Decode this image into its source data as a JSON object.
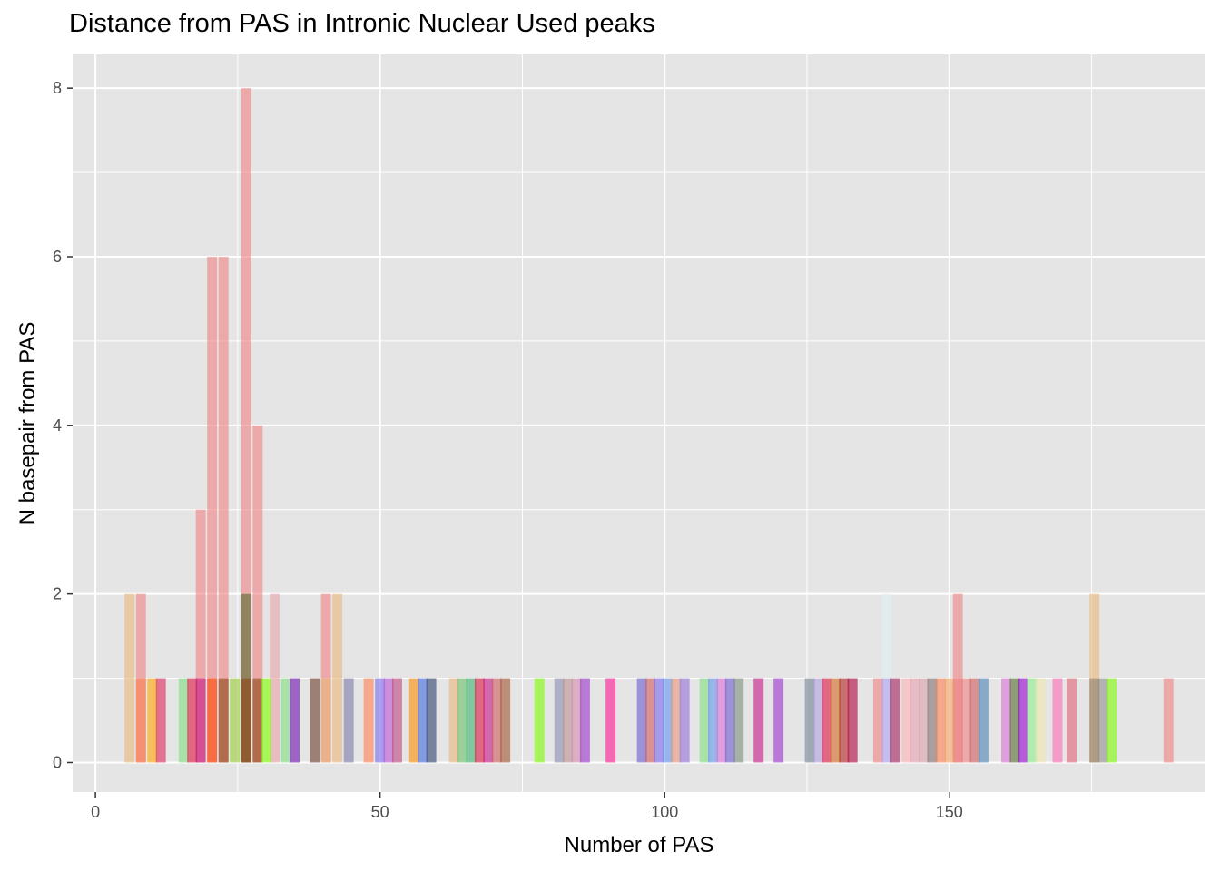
{
  "chart_data": {
    "type": "bar",
    "title": "Distance from PAS in Intronic Nuclear Used peaks",
    "xlabel": "Number of PAS",
    "ylabel": "N basepair from PAS",
    "xlim": [
      -4,
      195
    ],
    "ylim": [
      -0.35,
      8.4
    ],
    "x_ticks": [
      0,
      50,
      100,
      150
    ],
    "y_ticks": [
      0,
      2,
      4,
      6,
      8
    ],
    "grid": true,
    "background": "#e5e5e5",
    "grid_color": "#ffffff",
    "bar_width": 1.75,
    "bar_opacity": 0.6,
    "legend": "none",
    "bars": [
      {
        "x": 6,
        "height": 2,
        "color": "#e8b77a"
      },
      {
        "x": 8,
        "height": 2,
        "color": "#f08080"
      },
      {
        "x": 8,
        "height": 1,
        "color": "#ff7f50"
      },
      {
        "x": 10,
        "height": 1,
        "color": "#ffa500"
      },
      {
        "x": 11.5,
        "height": 1,
        "color": "#e0245e"
      },
      {
        "x": 15.5,
        "height": 1,
        "color": "#7ee07e"
      },
      {
        "x": 17,
        "height": 1,
        "color": "#dc143c"
      },
      {
        "x": 18.5,
        "height": 3,
        "color": "#f08080"
      },
      {
        "x": 18.5,
        "height": 1,
        "color": "#c71585"
      },
      {
        "x": 20.5,
        "height": 6,
        "color": "#f08080"
      },
      {
        "x": 20.5,
        "height": 1,
        "color": "#ff4500"
      },
      {
        "x": 22.5,
        "height": 6,
        "color": "#f08080"
      },
      {
        "x": 22.5,
        "height": 1,
        "color": "#8b4513"
      },
      {
        "x": 24.5,
        "height": 1,
        "color": "#9acd32"
      },
      {
        "x": 26.5,
        "height": 8,
        "color": "#f08080"
      },
      {
        "x": 26.5,
        "height": 2,
        "color": "#556b2f"
      },
      {
        "x": 26.5,
        "height": 1,
        "color": "#8b4513"
      },
      {
        "x": 28.5,
        "height": 4,
        "color": "#f08080"
      },
      {
        "x": 28.5,
        "height": 1,
        "color": "#8b4513"
      },
      {
        "x": 30,
        "height": 1,
        "color": "#7fff00"
      },
      {
        "x": 31.5,
        "height": 2,
        "color": "#e6a1a8"
      },
      {
        "x": 33.5,
        "height": 1,
        "color": "#7ee07e"
      },
      {
        "x": 35,
        "height": 1,
        "color": "#6a0dad"
      },
      {
        "x": 38.5,
        "height": 1,
        "color": "#6b3a2a"
      },
      {
        "x": 40.5,
        "height": 2,
        "color": "#f08080"
      },
      {
        "x": 40.5,
        "height": 1,
        "color": "#e8b77a"
      },
      {
        "x": 42.5,
        "height": 2,
        "color": "#e8b77a"
      },
      {
        "x": 44.5,
        "height": 1,
        "color": "#7a7aa8"
      },
      {
        "x": 48,
        "height": 1,
        "color": "#ff7f50"
      },
      {
        "x": 50,
        "height": 1,
        "color": "#7b68ee"
      },
      {
        "x": 51.5,
        "height": 1,
        "color": "#ba55d3"
      },
      {
        "x": 53,
        "height": 1,
        "color": "#c0447a"
      },
      {
        "x": 56,
        "height": 1,
        "color": "#ff8c00"
      },
      {
        "x": 57.5,
        "height": 1,
        "color": "#4169e1"
      },
      {
        "x": 59,
        "height": 1,
        "color": "#2f3f6f"
      },
      {
        "x": 63,
        "height": 1,
        "color": "#e8b77a"
      },
      {
        "x": 64.5,
        "height": 1,
        "color": "#6abf6a"
      },
      {
        "x": 66,
        "height": 1,
        "color": "#3cb371"
      },
      {
        "x": 67.5,
        "height": 1,
        "color": "#dc143c"
      },
      {
        "x": 69,
        "height": 1,
        "color": "#c71585"
      },
      {
        "x": 70.5,
        "height": 1,
        "color": "#cd5c5c"
      },
      {
        "x": 72,
        "height": 1,
        "color": "#a0522d"
      },
      {
        "x": 78,
        "height": 1,
        "color": "#7cfc00"
      },
      {
        "x": 81.5,
        "height": 1,
        "color": "#8a8ab0"
      },
      {
        "x": 83,
        "height": 1,
        "color": "#bc8f8f"
      },
      {
        "x": 84.5,
        "height": 1,
        "color": "#d08aa8"
      },
      {
        "x": 86,
        "height": 1,
        "color": "#9932cc"
      },
      {
        "x": 90.5,
        "height": 1,
        "color": "#ff1493"
      },
      {
        "x": 96,
        "height": 1,
        "color": "#6a5acd"
      },
      {
        "x": 97.5,
        "height": 1,
        "color": "#cd5c5c"
      },
      {
        "x": 99,
        "height": 1,
        "color": "#7b68ee"
      },
      {
        "x": 100.5,
        "height": 1,
        "color": "#6495ed"
      },
      {
        "x": 102,
        "height": 1,
        "color": "#e9967a"
      },
      {
        "x": 103.5,
        "height": 1,
        "color": "#9370db"
      },
      {
        "x": 107,
        "height": 1,
        "color": "#7ee07e"
      },
      {
        "x": 108.5,
        "height": 1,
        "color": "#6495ed"
      },
      {
        "x": 110,
        "height": 1,
        "color": "#da70d6"
      },
      {
        "x": 111.5,
        "height": 1,
        "color": "#6a5acd"
      },
      {
        "x": 113,
        "height": 1,
        "color": "#7c8c7c"
      },
      {
        "x": 116.5,
        "height": 1,
        "color": "#c71585"
      },
      {
        "x": 120,
        "height": 1,
        "color": "#9932cc"
      },
      {
        "x": 125.5,
        "height": 1,
        "color": "#708090"
      },
      {
        "x": 127,
        "height": 1,
        "color": "#b0a0e0"
      },
      {
        "x": 128.5,
        "height": 1,
        "color": "#dc143c"
      },
      {
        "x": 130,
        "height": 1,
        "color": "#d2691e"
      },
      {
        "x": 131.5,
        "height": 1,
        "color": "#b22222"
      },
      {
        "x": 133,
        "height": 1,
        "color": "#b0003a"
      },
      {
        "x": 137.5,
        "height": 1,
        "color": "#f08080"
      },
      {
        "x": 139,
        "height": 2,
        "color": "#e0f0f0"
      },
      {
        "x": 139,
        "height": 1,
        "color": "#b0a0f0"
      },
      {
        "x": 140.5,
        "height": 1,
        "color": "#a0205a"
      },
      {
        "x": 142.5,
        "height": 1,
        "color": "#ffb0b8"
      },
      {
        "x": 144,
        "height": 1,
        "color": "#e9a0b0"
      },
      {
        "x": 145.5,
        "height": 1,
        "color": "#d8a0a8"
      },
      {
        "x": 147,
        "height": 1,
        "color": "#7f6f6f"
      },
      {
        "x": 148.5,
        "height": 1,
        "color": "#ff7f50"
      },
      {
        "x": 150,
        "height": 1,
        "color": "#f4a460"
      },
      {
        "x": 151.5,
        "height": 2,
        "color": "#f08080"
      },
      {
        "x": 151.5,
        "height": 1,
        "color": "#f08080"
      },
      {
        "x": 153,
        "height": 1,
        "color": "#f08080"
      },
      {
        "x": 154.5,
        "height": 1,
        "color": "#cd5c5c"
      },
      {
        "x": 156,
        "height": 1,
        "color": "#4682b4"
      },
      {
        "x": 160,
        "height": 1,
        "color": "#da70d6"
      },
      {
        "x": 161.5,
        "height": 1,
        "color": "#556b2f"
      },
      {
        "x": 163,
        "height": 1,
        "color": "#9400d3"
      },
      {
        "x": 164.5,
        "height": 1,
        "color": "#90ee90"
      },
      {
        "x": 166,
        "height": 1,
        "color": "#eee8aa"
      },
      {
        "x": 169,
        "height": 1,
        "color": "#ff69b4"
      },
      {
        "x": 171.5,
        "height": 1,
        "color": "#e06070"
      },
      {
        "x": 175.5,
        "height": 2,
        "color": "#e8b77a"
      },
      {
        "x": 175.5,
        "height": 1,
        "color": "#8b7d6b"
      },
      {
        "x": 177,
        "height": 1,
        "color": "#8f8f8f"
      },
      {
        "x": 178.5,
        "height": 1,
        "color": "#7cfc00"
      },
      {
        "x": 188.5,
        "height": 1,
        "color": "#f08080"
      }
    ]
  }
}
